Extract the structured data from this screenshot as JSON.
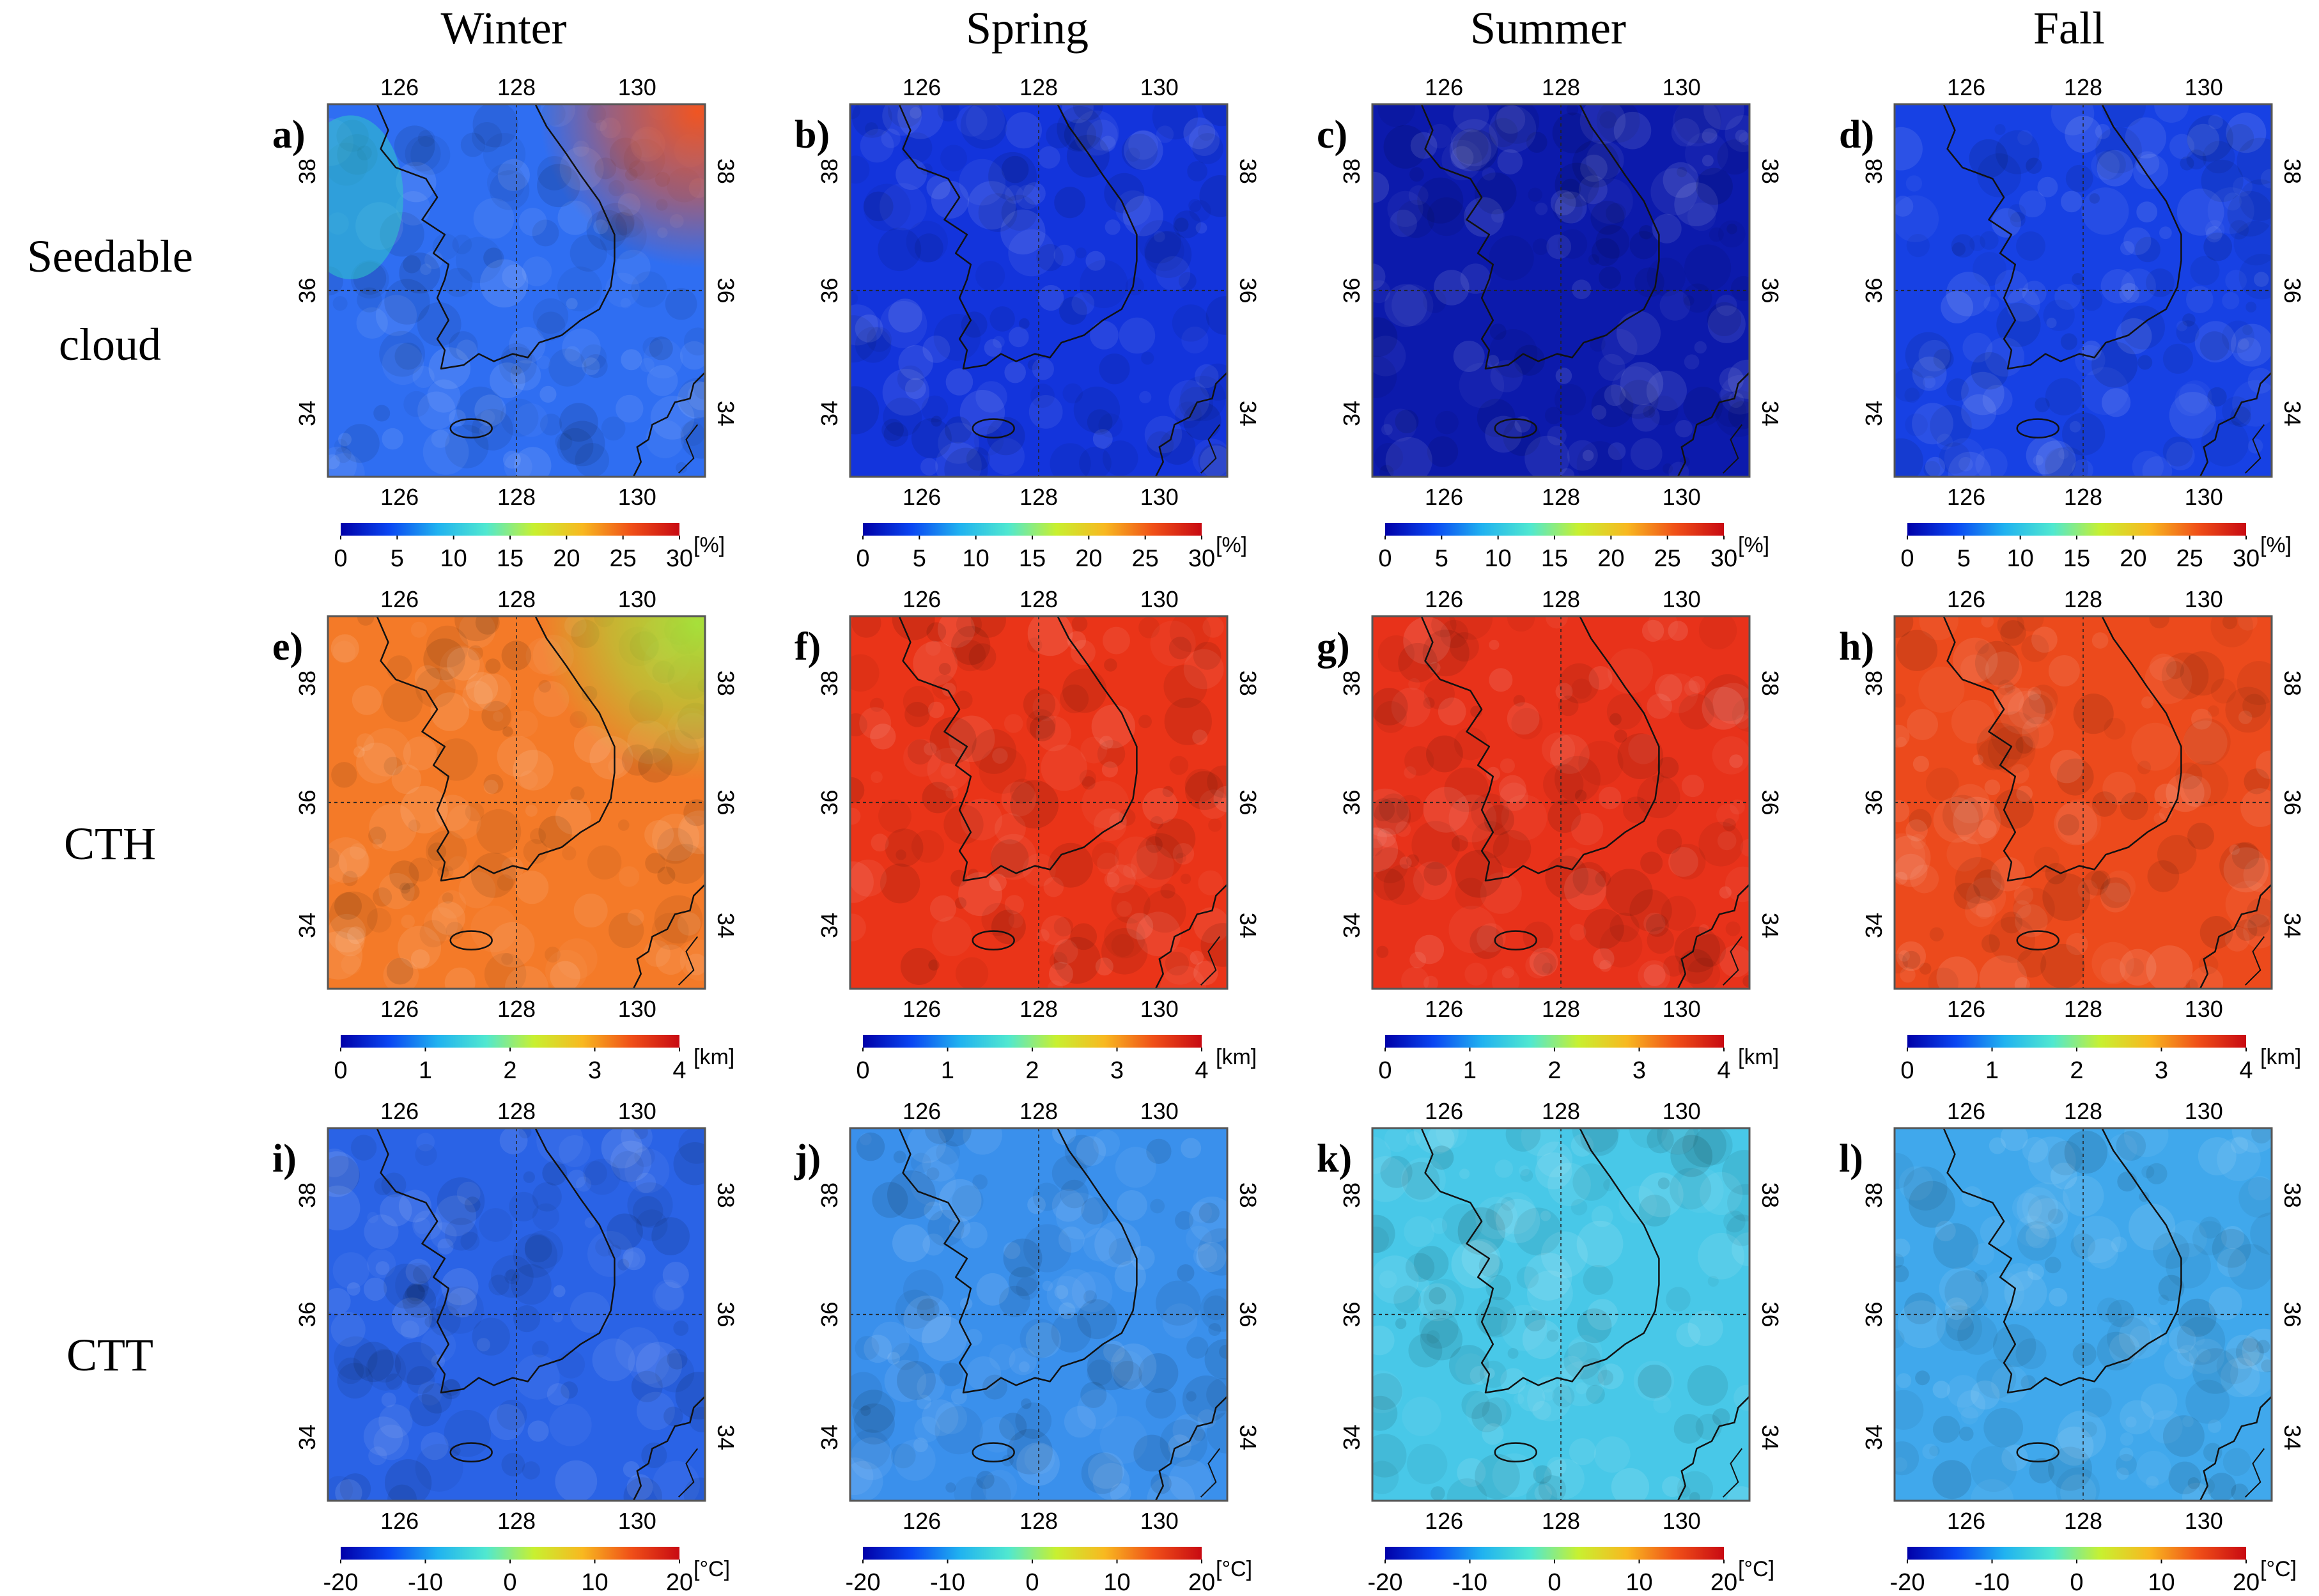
{
  "chart_data": {
    "type": "heatmap",
    "title": "",
    "seasons": [
      "Winter",
      "Spring",
      "Summer",
      "Fall"
    ],
    "rows": [
      {
        "label": [
          "Seedable",
          "cloud"
        ],
        "variable": "Seedable cloud",
        "unit": "[%]",
        "range": [
          0,
          30
        ],
        "ticks": [
          "0",
          "5",
          "10",
          "15",
          "20",
          "25",
          "30"
        ],
        "panels": [
          {
            "letter": "a)",
            "season": "Winter",
            "typical_value": 9,
            "max_value": 28,
            "base_color": "#2f6ef2",
            "hotspot_color": "#f05522"
          },
          {
            "letter": "b)",
            "season": "Spring",
            "typical_value": 2,
            "max_value": 4,
            "base_color": "#1334dc",
            "hotspot_color": ""
          },
          {
            "letter": "c)",
            "season": "Summer",
            "typical_value": 1,
            "max_value": 2,
            "base_color": "#0c1aac",
            "hotspot_color": ""
          },
          {
            "letter": "d)",
            "season": "Fall",
            "typical_value": 2.5,
            "max_value": 4,
            "base_color": "#1741e4",
            "hotspot_color": ""
          }
        ]
      },
      {
        "label": [
          "CTH"
        ],
        "variable": "CTH",
        "unit": "[km]",
        "range": [
          0,
          4
        ],
        "ticks": [
          "0",
          "1",
          "2",
          "3",
          "4"
        ],
        "panels": [
          {
            "letter": "e)",
            "season": "Winter",
            "typical_value": 3.2,
            "max_value": 3.6,
            "base_color": "#f47a28",
            "hotspot_color": "#a6e03a"
          },
          {
            "letter": "f)",
            "season": "Spring",
            "typical_value": 3.7,
            "max_value": 3.9,
            "base_color": "#ea3418",
            "hotspot_color": ""
          },
          {
            "letter": "g)",
            "season": "Summer",
            "typical_value": 3.6,
            "max_value": 3.9,
            "base_color": "#e8321a",
            "hotspot_color": ""
          },
          {
            "letter": "h)",
            "season": "Fall",
            "typical_value": 3.7,
            "max_value": 3.9,
            "base_color": "#ec4a1c",
            "hotspot_color": ""
          }
        ]
      },
      {
        "label": [
          "CTT"
        ],
        "variable": "CTT",
        "unit": "[°C]",
        "range": [
          -20,
          20
        ],
        "ticks": [
          "-20",
          "-10",
          "0",
          "10",
          "20"
        ],
        "panels": [
          {
            "letter": "i)",
            "season": "Winter",
            "typical_value": -13,
            "max_value": -9,
            "base_color": "#2a63e6",
            "hotspot_color": ""
          },
          {
            "letter": "j)",
            "season": "Spring",
            "typical_value": -8,
            "max_value": -5,
            "base_color": "#3a90ec",
            "hotspot_color": ""
          },
          {
            "letter": "k)",
            "season": "Summer",
            "typical_value": -4,
            "max_value": 0,
            "base_color": "#48c8e8",
            "hotspot_color": ""
          },
          {
            "letter": "l)",
            "season": "Fall",
            "typical_value": -6,
            "max_value": -3,
            "base_color": "#40a8ec",
            "hotspot_color": ""
          }
        ]
      }
    ],
    "longitude_ticks": [
      "126",
      "128",
      "130"
    ],
    "latitude_ticks": [
      "38",
      "36",
      "34"
    ],
    "colormap": [
      "#0000a8",
      "#0a46f2",
      "#20b2f0",
      "#50e8d0",
      "#c8f030",
      "#f8b820",
      "#f05018",
      "#c80a12"
    ]
  }
}
